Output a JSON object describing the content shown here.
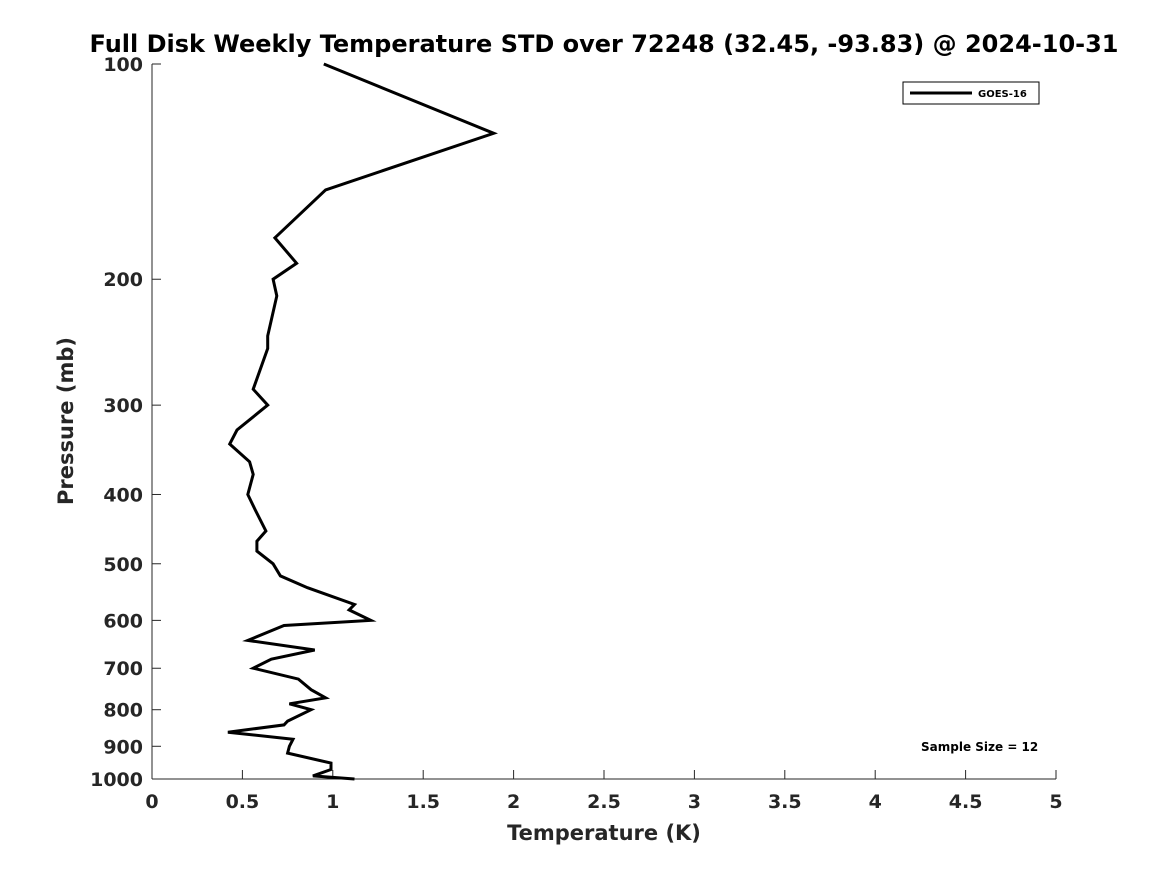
{
  "chart_data": {
    "type": "line",
    "title": "Full Disk Weekly Temperature STD over 72248 (32.45, -93.83) @ 2024-10-31",
    "xlabel": "Temperature (K)",
    "ylabel": "Pressure (mb)",
    "xlim": [
      0,
      5
    ],
    "ylim": [
      100,
      1000
    ],
    "yscale": "log",
    "yreversed": true,
    "grid": false,
    "xticks": [
      0,
      0.5,
      1,
      1.5,
      2,
      2.5,
      3,
      3.5,
      4,
      4.5,
      5
    ],
    "xtick_labels": [
      "0",
      "0.5",
      "1",
      "1.5",
      "2",
      "2.5",
      "3",
      "3.5",
      "4",
      "4.5",
      "5"
    ],
    "yticks": [
      100,
      200,
      300,
      400,
      500,
      600,
      700,
      800,
      900,
      1000
    ],
    "ytick_labels": [
      "100",
      "200",
      "300",
      "400",
      "500",
      "600",
      "700",
      "800",
      "900",
      "1000"
    ],
    "legend": {
      "position": "top-right",
      "entries": [
        "GOES-16"
      ]
    },
    "annotation": "Sample Size = 12",
    "series": [
      {
        "name": "GOES-16",
        "color": "#000000",
        "x": [
          0.95,
          1.89,
          0.96,
          0.68,
          0.8,
          0.67,
          0.69,
          0.64,
          0.64,
          0.56,
          0.64,
          0.47,
          0.43,
          0.54,
          0.56,
          0.53,
          0.57,
          0.63,
          0.58,
          0.58,
          0.67,
          0.71,
          0.86,
          1.12,
          1.09,
          1.21,
          0.73,
          0.53,
          0.9,
          0.66,
          0.56,
          0.81,
          0.88,
          0.96,
          0.76,
          0.88,
          0.75,
          0.73,
          0.42,
          0.78,
          0.76,
          0.75,
          0.99,
          0.99,
          0.89,
          1.12
        ],
        "y": [
          100,
          125,
          150,
          175,
          190,
          200,
          211,
          240,
          250,
          285,
          300,
          325,
          340,
          360,
          375,
          400,
          420,
          450,
          465,
          480,
          500,
          520,
          540,
          570,
          580,
          600,
          610,
          640,
          660,
          680,
          700,
          725,
          750,
          770,
          785,
          800,
          830,
          840,
          860,
          880,
          900,
          920,
          950,
          970,
          990,
          1000
        ]
      }
    ]
  }
}
